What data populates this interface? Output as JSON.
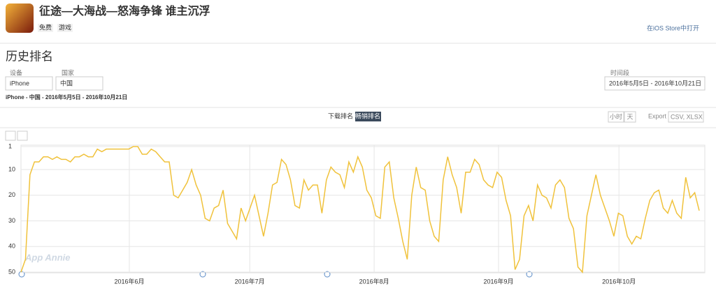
{
  "app": {
    "title": "征途—大海战—怒海争锋 谁主沉浮",
    "tags": [
      "免费",
      "游戏"
    ],
    "open_link": "在iOS Store中打开"
  },
  "section_title": "历史排名",
  "filters": {
    "device_label": "设备",
    "device": "iPhone",
    "country_label": "国家",
    "country": "中国",
    "period_label": "时间段",
    "period": "2016年5月5日 - 2016年10月21日"
  },
  "summary": "iPhone - 中国 - 2016年5月5日 - 2016年10月21日",
  "tabs": [
    "下载排名",
    "畅销排名"
  ],
  "granularity": [
    "小时",
    "天"
  ],
  "export": {
    "label": "Export",
    "formats": "CSV, XLSX"
  },
  "watermark": "App Annie",
  "chart_data": {
    "type": "line",
    "xlim": [
      "2016-05-05",
      "2016-10-21"
    ],
    "xticks": [
      {
        "value": "2016-06-01",
        "label": "2016年6月"
      },
      {
        "value": "2016-07-01",
        "label": "2016年7月"
      },
      {
        "value": "2016-08-01",
        "label": "2016年8月"
      },
      {
        "value": "2016-09-01",
        "label": "2016年9月"
      },
      {
        "value": "2016-10-01",
        "label": "2016年10月"
      }
    ],
    "ylim": [
      50,
      1
    ],
    "yticks": [
      1,
      10,
      20,
      30,
      40,
      50
    ],
    "grid": true,
    "color": "#f0c23b",
    "values": [
      50,
      45,
      12,
      7,
      7,
      5,
      5,
      6,
      5,
      6,
      6,
      7,
      5,
      5,
      4,
      5,
      5,
      2,
      3,
      2,
      2,
      2,
      2,
      2,
      2,
      1,
      1,
      4,
      4,
      2,
      3,
      5,
      7,
      7,
      20,
      21,
      18,
      15,
      10,
      16,
      20,
      29,
      30,
      25,
      24,
      18,
      31,
      34,
      37,
      25,
      30,
      25,
      20,
      28,
      36,
      27,
      16,
      15,
      6,
      8,
      14,
      24,
      25,
      14,
      18,
      16,
      16,
      27,
      14,
      9,
      11,
      12,
      17,
      7,
      11,
      5,
      9,
      18,
      21,
      28,
      29,
      9,
      7,
      21,
      29,
      38,
      45,
      20,
      9,
      17,
      18,
      30,
      36,
      38,
      14,
      5,
      12,
      17,
      27,
      11,
      11,
      6,
      8,
      14,
      16,
      17,
      11,
      13,
      22,
      28,
      49,
      45,
      28,
      24,
      30,
      16,
      20,
      21,
      25,
      16,
      14,
      17,
      29,
      33,
      48,
      50,
      28,
      20,
      12,
      20,
      25,
      30,
      36,
      27,
      28,
      36,
      39,
      36,
      37,
      29,
      22,
      19,
      18,
      25,
      27,
      22,
      27,
      29,
      13,
      21,
      19,
      26
    ]
  }
}
